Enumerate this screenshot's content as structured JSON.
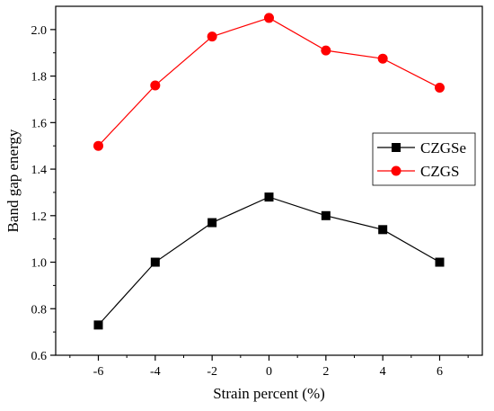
{
  "chart_data": {
    "type": "line",
    "title": "",
    "xlabel": "Strain percent (%)",
    "ylabel": "Band gap energy",
    "xlim": [
      -7.5,
      7.5
    ],
    "ylim": [
      0.6,
      2.1
    ],
    "x_ticks": [
      "-6",
      "-4",
      "-2",
      "0",
      "2",
      "4",
      "6"
    ],
    "y_ticks": [
      "0.6",
      "0.8",
      "1.0",
      "1.2",
      "1.4",
      "1.6",
      "1.8",
      "2.0"
    ],
    "x": [
      -6,
      -4,
      -2,
      0,
      2,
      4,
      6
    ],
    "series": [
      {
        "name": "CZGSe",
        "color": "#000000",
        "marker": "square",
        "values": [
          0.73,
          1.0,
          1.17,
          1.28,
          1.2,
          1.14,
          1.0
        ]
      },
      {
        "name": "CZGS",
        "color": "#ff0000",
        "marker": "circle",
        "values": [
          1.5,
          1.76,
          1.97,
          2.05,
          1.91,
          1.875,
          1.75
        ]
      }
    ],
    "legend_position": "right",
    "grid": false
  }
}
